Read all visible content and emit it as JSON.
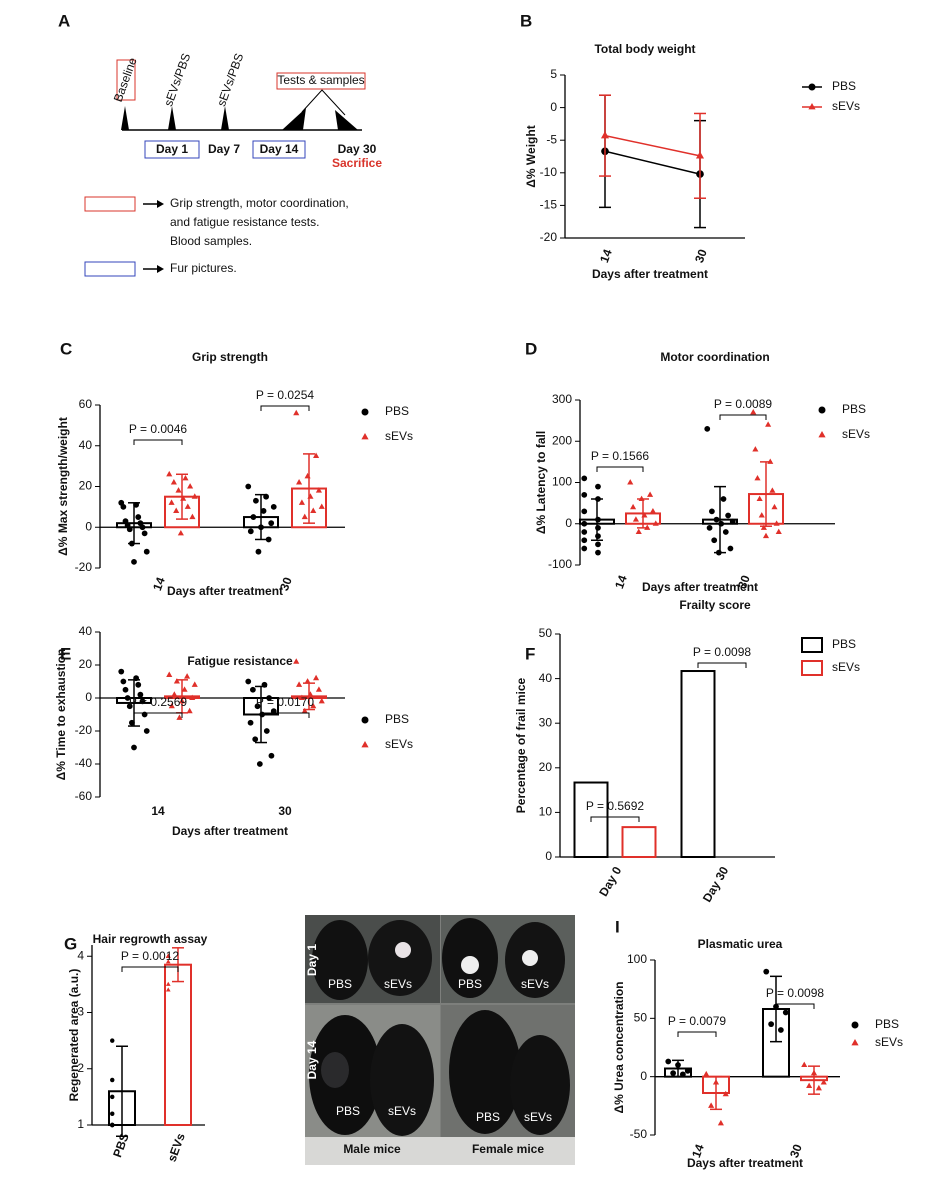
{
  "timeline": {
    "panel": "A",
    "events": [
      "Baseline",
      "sEVs/PBS",
      "sEVs/PBS",
      "Tests & samples"
    ],
    "days": [
      "Day 1",
      "Day 7",
      "Day 14",
      "Day 30"
    ],
    "note": "Sacrifice",
    "legend": [
      {
        "lines": [
          "Grip strength, motor coordination,",
          "and fatigue resistance tests.",
          "Blood samples."
        ]
      },
      {
        "lines": [
          "Fur pictures."
        ]
      }
    ]
  },
  "photo_panel": {
    "panel": "H",
    "rows": [
      "Day 1",
      "Day 14"
    ],
    "labels": [
      [
        "PBS",
        "sEVs",
        "PBS",
        "sEVs"
      ],
      [
        "PBS",
        "sEVs",
        "PBS",
        "sEVs"
      ]
    ],
    "groups": [
      "Male mice",
      "Female mice"
    ]
  },
  "chart_data": [
    {
      "type": "line",
      "panel": "B",
      "title": "Total body weight",
      "xlabel": "Days after treatment",
      "ylabel": "Δ% Weight",
      "categories": [
        "14",
        "30"
      ],
      "ylim": [
        -20,
        5
      ],
      "yticks": [
        5,
        0,
        -5,
        -10,
        -15,
        -20
      ],
      "series": [
        {
          "name": "PBS",
          "color": "#000000",
          "values": [
            -6.7,
            -10.2
          ],
          "errors": [
            8.6,
            8.2
          ]
        },
        {
          "name": "sEVs",
          "color": "#e0302a",
          "values": [
            -4.3,
            -7.4
          ],
          "errors": [
            6.2,
            6.5
          ]
        }
      ]
    },
    {
      "type": "bar_scatter",
      "panel": "C",
      "title": "Grip strength",
      "xlabel": "Days after treatment",
      "ylabel": "Δ% Max strength/weight",
      "categories": [
        "14",
        "30"
      ],
      "ylim": [
        -20,
        60
      ],
      "yticks": [
        60,
        40,
        20,
        0,
        -20
      ],
      "annotations": [
        "P = 0.0046",
        "P = 0.0254"
      ],
      "series": [
        {
          "name": "PBS",
          "color": "#000000",
          "values": [
            2,
            5
          ],
          "errors": [
            10,
            11
          ],
          "points": [
            [
              12,
              11,
              10,
              5,
              3,
              2,
              1,
              0,
              -1,
              -3,
              -8,
              -12,
              -17
            ],
            [
              20,
              15,
              13,
              10,
              8,
              5,
              2,
              0,
              -2,
              -6,
              -12
            ]
          ]
        },
        {
          "name": "sEVs",
          "color": "#e0302a",
          "values": [
            15,
            19
          ],
          "errors": [
            11,
            17
          ],
          "points": [
            [
              26,
              24,
              22,
              20,
              18,
              15,
              14,
              12,
              10,
              8,
              5,
              -3
            ],
            [
              56,
              35,
              25,
              22,
              18,
              15,
              12,
              10,
              8,
              5
            ]
          ]
        }
      ]
    },
    {
      "type": "bar_scatter",
      "panel": "D",
      "title": "Motor coordination",
      "xlabel": "Days after treatment",
      "ylabel": "Δ% Latency to fall",
      "categories": [
        "14",
        "30"
      ],
      "ylim": [
        -100,
        300
      ],
      "yticks": [
        300,
        200,
        100,
        0,
        -100
      ],
      "annotations": [
        "P = 0.1566",
        "P = 0.0089"
      ],
      "series": [
        {
          "name": "PBS",
          "color": "#000000",
          "values": [
            10,
            10
          ],
          "errors": [
            50,
            80
          ],
          "points": [
            [
              110,
              90,
              70,
              60,
              30,
              10,
              0,
              -10,
              -20,
              -30,
              -40,
              -50,
              -60,
              -70
            ],
            [
              230,
              60,
              30,
              20,
              10,
              5,
              0,
              -10,
              -20,
              -40,
              -60,
              -70
            ]
          ]
        },
        {
          "name": "sEVs",
          "color": "#e0302a",
          "values": [
            25,
            72
          ],
          "errors": [
            35,
            78
          ],
          "points": [
            [
              100,
              70,
              60,
              40,
              30,
              20,
              10,
              0,
              -10,
              -20
            ],
            [
              270,
              240,
              180,
              150,
              110,
              80,
              60,
              40,
              20,
              0,
              -10,
              -20,
              -30
            ]
          ]
        }
      ]
    },
    {
      "type": "bar_scatter",
      "panel": "E",
      "title": "Fatigue resistance",
      "xlabel": "Days after treatment",
      "ylabel": "Δ% Time to exhaustion",
      "categories": [
        "14",
        "30"
      ],
      "ylim": [
        -60,
        40
      ],
      "yticks": [
        40,
        20,
        0,
        -20,
        -40,
        -60
      ],
      "annotations": [
        "P = 0.2569",
        "P = 0.0170"
      ],
      "series": [
        {
          "name": "PBS",
          "color": "#000000",
          "values": [
            -3,
            -10
          ],
          "errors": [
            14,
            17
          ],
          "points": [
            [
              16,
              12,
              10,
              8,
              5,
              2,
              0,
              -2,
              -5,
              -10,
              -15,
              -20,
              -30
            ],
            [
              10,
              8,
              5,
              0,
              -5,
              -8,
              -10,
              -15,
              -20,
              -25,
              -35,
              -40
            ]
          ]
        },
        {
          "name": "sEVs",
          "color": "#e0302a",
          "values": [
            1,
            1
          ],
          "errors": [
            10,
            8
          ],
          "points": [
            [
              14,
              13,
              10,
              8,
              5,
              2,
              0,
              -2,
              -5,
              -8,
              -12
            ],
            [
              22,
              12,
              10,
              8,
              5,
              2,
              0,
              -2,
              -5,
              -8
            ]
          ]
        }
      ]
    },
    {
      "type": "bar",
      "panel": "F",
      "title": "Frailty score",
      "ylabel": "Percentage of frail mice",
      "categories": [
        "Day 0",
        "Day 30"
      ],
      "ylim": [
        0,
        50
      ],
      "yticks": [
        0,
        10,
        20,
        30,
        40,
        50
      ],
      "annotations": [
        "P = 0.5692",
        "P = 0.0098"
      ],
      "series": [
        {
          "name": "PBS",
          "color": "#000000",
          "values": [
            16.7,
            41.7
          ]
        },
        {
          "name": "sEVs",
          "color": "#e0302a",
          "values": [
            6.7,
            0
          ]
        }
      ]
    },
    {
      "type": "bar_scatter",
      "panel": "G",
      "title": "Hair regrowth assay",
      "ylabel": "Regenerated area (a.u.)",
      "categories": [
        "PBS",
        "sEVs"
      ],
      "ylim": [
        1,
        4.2
      ],
      "yticks": [
        1,
        2,
        3,
        4
      ],
      "annotations": [
        "P = 0.0012"
      ],
      "series": [
        {
          "colors": [
            "#000000",
            "#e0302a"
          ],
          "values": [
            1.6,
            3.85
          ],
          "errors": [
            0.8,
            0.3
          ],
          "points": [
            [
              2.5,
              1.8,
              1.2,
              1.0,
              1.0,
              1.0,
              1.5
            ],
            [
              4.0,
              4.0,
              4.0,
              4.0,
              3.9,
              3.5,
              3.4
            ]
          ]
        }
      ]
    },
    {
      "type": "bar_scatter",
      "panel": "I",
      "title": "Plasmatic urea",
      "xlabel": "Days after treatment",
      "ylabel": "Δ% Urea concentration",
      "categories": [
        "14",
        "30"
      ],
      "ylim": [
        -50,
        100
      ],
      "yticks": [
        100,
        50,
        0,
        -50
      ],
      "annotations": [
        "P = 0.0079",
        "P = 0.0098"
      ],
      "series": [
        {
          "name": "PBS",
          "color": "#000000",
          "values": [
            7,
            58
          ],
          "errors": [
            7,
            28
          ],
          "points": [
            [
              13,
              10,
              5,
              3,
              2
            ],
            [
              90,
              60,
              55,
              45,
              40
            ]
          ]
        },
        {
          "name": "sEVs",
          "color": "#e0302a",
          "values": [
            -14,
            -3
          ],
          "errors": [
            14,
            12
          ],
          "points": [
            [
              2,
              -5,
              -15,
              -25,
              -40
            ],
            [
              10,
              3,
              -5,
              -8,
              -10
            ]
          ]
        }
      ]
    }
  ]
}
